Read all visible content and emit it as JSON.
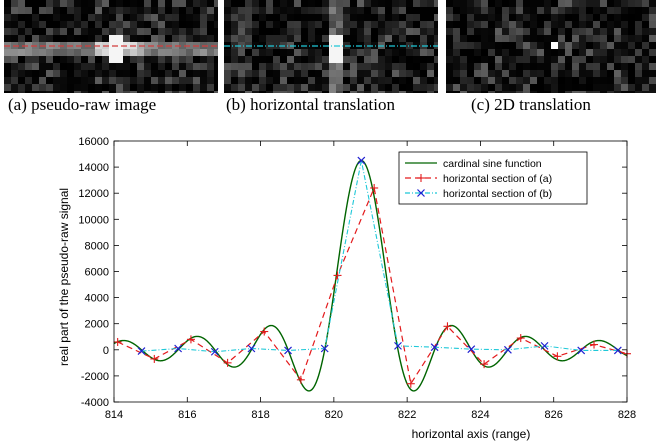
{
  "captions": {
    "a": "(a) pseudo-raw image",
    "b": "(b) horizontal translation",
    "c": "(c) 2D translation"
  },
  "colors": {
    "sinc": "#006400",
    "section_a": "#e31a1c",
    "section_b": "#1ec8d8",
    "markers_b": "#1f1fd0",
    "section_a_line_overlay": "#d23c3c",
    "section_b_line_overlay": "#1ec8d8"
  },
  "chart_data": {
    "type": "line",
    "xlabel": "horizontal axis (range)",
    "ylabel": "real part of the pseudo-raw signal",
    "xlim": [
      814,
      828
    ],
    "ylim": [
      -4000,
      16000
    ],
    "xticks": [
      814,
      816,
      818,
      820,
      822,
      824,
      826,
      828
    ],
    "yticks": [
      -4000,
      -2000,
      0,
      2000,
      4000,
      6000,
      8000,
      10000,
      12000,
      14000,
      16000
    ],
    "legend_position": "top-right",
    "legend": [
      "cardinal sine function",
      "horizontal section of (a)",
      "horizontal section of (b)"
    ],
    "series": [
      {
        "name": "cardinal sine function",
        "style": "solid",
        "function": "sinc",
        "peak_x": 820.75,
        "amplitude": 14500
      },
      {
        "name": "horizontal section of (a)",
        "style": "dashed",
        "marker": "+",
        "x": [
          814.1,
          815.1,
          816.1,
          817.1,
          818.1,
          819.1,
          820.1,
          821.1,
          822.1,
          823.1,
          824.1,
          825.1,
          826.1,
          827.1,
          828.1
        ],
        "y": [
          600,
          -700,
          800,
          -1000,
          1400,
          -2300,
          5700,
          12400,
          -2600,
          1800,
          -1100,
          900,
          -500,
          400,
          -300
        ]
      },
      {
        "name": "horizontal section of (b)",
        "style": "dash-dot",
        "marker": "x",
        "x": [
          814.75,
          815.75,
          816.75,
          817.75,
          818.75,
          819.75,
          820.75,
          821.75,
          822.75,
          823.75,
          824.75,
          825.75,
          826.75,
          827.75
        ],
        "y": [
          -100,
          100,
          -150,
          100,
          -50,
          100,
          14500,
          300,
          200,
          50,
          0,
          300,
          -50,
          -50
        ]
      }
    ]
  }
}
